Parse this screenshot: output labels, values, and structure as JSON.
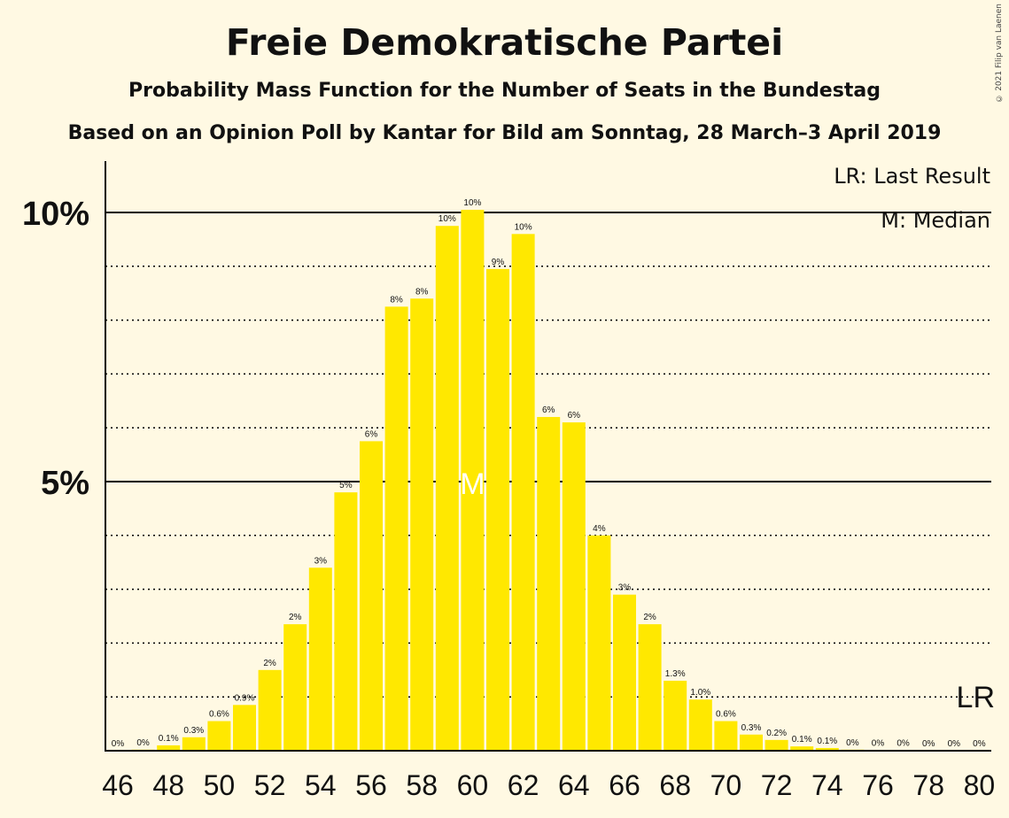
{
  "header": {
    "title": "Freie Demokratische Partei",
    "subtitle": "Probability Mass Function for the Number of Seats in the Bundestag",
    "subtitle2": "Based on an Opinion Poll by Kantar for Bild am Sonntag, 28 March–3 April 2019",
    "copyright": "© 2021 Filip van Laenen"
  },
  "legend": {
    "last_result": "LR: Last Result",
    "median": "M: Median"
  },
  "colors": {
    "bar": "#FFE800",
    "background": "#FFF9E3",
    "text": "#111111"
  },
  "chart_data": {
    "type": "bar",
    "title": "Freie Demokratische Partei",
    "categories": [
      46,
      47,
      48,
      49,
      50,
      51,
      52,
      53,
      54,
      55,
      56,
      57,
      58,
      59,
      60,
      61,
      62,
      63,
      64,
      65,
      66,
      67,
      68,
      69,
      70,
      71,
      72,
      73,
      74,
      75,
      76,
      77,
      78,
      79,
      80
    ],
    "values": [
      0,
      0.02,
      0.1,
      0.25,
      0.55,
      0.85,
      1.5,
      2.35,
      3.4,
      4.8,
      5.75,
      8.25,
      8.4,
      9.75,
      10.05,
      8.95,
      9.6,
      6.2,
      6.1,
      4.0,
      2.9,
      2.35,
      1.3,
      0.95,
      0.55,
      0.3,
      0.2,
      0.08,
      0.05,
      0.02,
      0.01,
      0.01,
      0,
      0,
      0
    ],
    "data_labels": [
      "0%",
      "0%",
      "0.1%",
      "0.3%",
      "0.6%",
      "0.9%",
      "2%",
      "2%",
      "3%",
      "5%",
      "6%",
      "8%",
      "8%",
      "10%",
      "10%",
      "9%",
      "10%",
      "6%",
      "6%",
      "4%",
      "3%",
      "2%",
      "1.3%",
      "1.0%",
      "0.6%",
      "0.3%",
      "0.2%",
      "0.1%",
      "0.1%",
      "0%",
      "0%",
      "0%",
      "0%",
      "0%",
      "0%"
    ],
    "x_tick_labels": [
      "46",
      "48",
      "50",
      "52",
      "54",
      "56",
      "58",
      "60",
      "62",
      "64",
      "66",
      "68",
      "70",
      "72",
      "74",
      "76",
      "78",
      "80"
    ],
    "y_tick_labels": [
      "5%",
      "10%"
    ],
    "ylim": [
      0,
      10.96
    ],
    "median": 60,
    "median_label": "M",
    "last_result": 80,
    "last_result_label": "LR",
    "gridlines": "dotted every 1%, solid at 5% and 10%"
  }
}
